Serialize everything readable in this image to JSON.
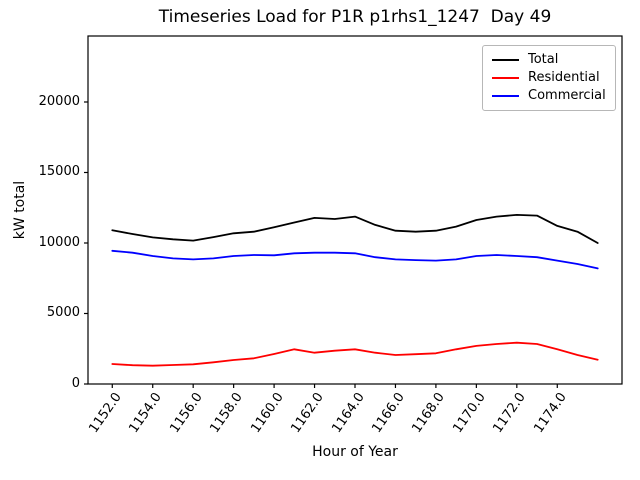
{
  "chart_data": {
    "type": "line",
    "title": "Timeseries Load for P1R p1rhs1_1247  Day 49",
    "xlabel": "Hour of Year",
    "ylabel": "kW total",
    "x": [
      1152,
      1153,
      1154,
      1155,
      1156,
      1157,
      1158,
      1159,
      1160,
      1161,
      1162,
      1163,
      1164,
      1165,
      1166,
      1167,
      1168,
      1169,
      1170,
      1171,
      1172,
      1173,
      1174,
      1175,
      1176
    ],
    "series": [
      {
        "name": "Total",
        "color": "#000000",
        "values": [
          10900,
          10640,
          10400,
          10260,
          10170,
          10420,
          10690,
          10800,
          11110,
          11450,
          11780,
          11700,
          11870,
          11280,
          10870,
          10800,
          10870,
          11160,
          11630,
          11870,
          11990,
          11940,
          11210,
          10800,
          10000
        ]
      },
      {
        "name": "Residential",
        "color": "#ff0000",
        "values": [
          1420,
          1330,
          1300,
          1350,
          1400,
          1540,
          1700,
          1820,
          2130,
          2460,
          2220,
          2360,
          2460,
          2220,
          2060,
          2110,
          2180,
          2460,
          2700,
          2840,
          2930,
          2840,
          2460,
          2060,
          1720
        ]
      },
      {
        "name": "Commercial",
        "color": "#0000ff",
        "values": [
          9450,
          9310,
          9080,
          8910,
          8840,
          8910,
          9080,
          9150,
          9130,
          9270,
          9310,
          9310,
          9270,
          8990,
          8840,
          8790,
          8750,
          8840,
          9080,
          9150,
          9080,
          8990,
          8750,
          8510,
          8200
        ]
      }
    ],
    "xlim": [
      1150.8,
      1177.2
    ],
    "ylim": [
      0,
      24680
    ],
    "xticks": [
      1152,
      1154,
      1156,
      1158,
      1160,
      1162,
      1164,
      1166,
      1168,
      1170,
      1172,
      1174
    ],
    "xtick_labels": [
      "1152.0",
      "1154.0",
      "1156.0",
      "1158.0",
      "1160.0",
      "1162.0",
      "1164.0",
      "1166.0",
      "1168.0",
      "1170.0",
      "1172.0",
      "1174.0"
    ],
    "yticks": [
      0,
      5000,
      10000,
      15000,
      20000
    ],
    "ytick_labels": [
      "0",
      "5000",
      "10000",
      "15000",
      "20000"
    ],
    "legend_position": "upper right",
    "grid": false,
    "axis_color": "#000000",
    "background_color": "#ffffff"
  }
}
